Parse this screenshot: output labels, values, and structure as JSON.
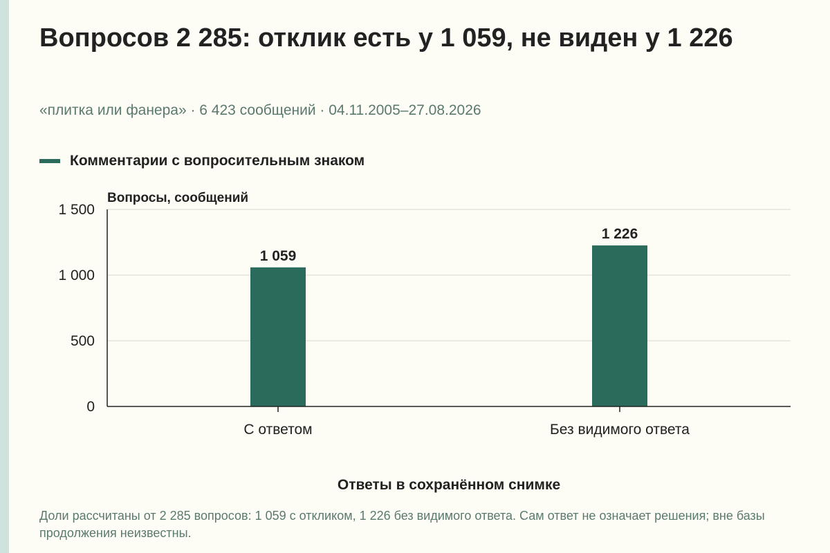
{
  "title": "Вопросов 2 285: отклик есть у 1 059, не виден у 1 226",
  "subtitle": "«плитка или фанера» · 6 423 сообщений · 04.11.2005–27.08.2026",
  "caption": "Доли рассчитаны от 2 285 вопросов: 1 059 с откликом, 1 226 без видимого ответа. Сам ответ не означает решения; вне базы продолжения неизвестны.",
  "colors": {
    "bar": "#2a6b5b",
    "grid": "#d8d8d0",
    "axis": "#222222"
  },
  "chart_data": {
    "type": "bar",
    "categories": [
      "С ответом",
      "Без видимого ответа"
    ],
    "series": [
      {
        "name": "Комментарии с вопросительным знаком",
        "values": [
          1059,
          1226
        ]
      }
    ],
    "data_labels": [
      "1 059",
      "1 226"
    ],
    "title": "Вопросов 2 285: отклик есть у 1 059, не виден у 1 226",
    "xlabel": "Ответы в сохранённом снимке",
    "ylabel": "Вопросы, сообщений",
    "ylim": [
      0,
      1500
    ],
    "yticks": [
      0,
      500,
      1000,
      1500
    ],
    "ytick_labels": [
      "0",
      "500",
      "1 000",
      "1 500"
    ],
    "grid": true,
    "legend_position": "top-left"
  }
}
